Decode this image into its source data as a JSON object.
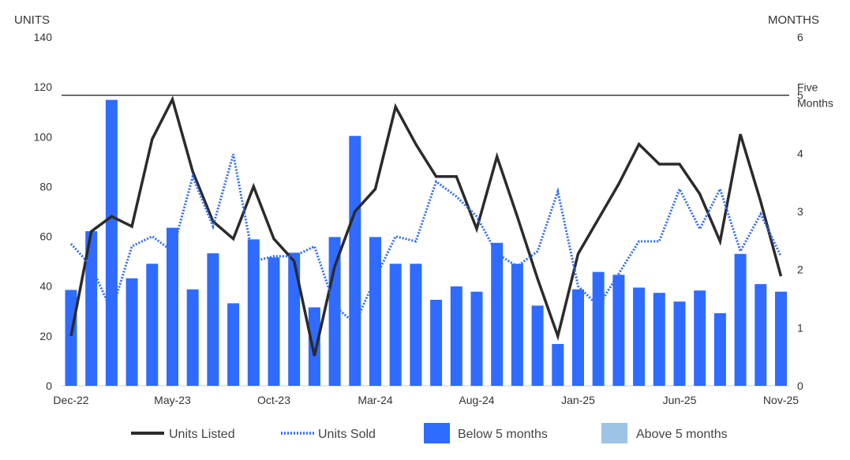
{
  "chart_data": {
    "type": "bar+line",
    "left_axis": {
      "title": "UNITS",
      "min": 0,
      "max": 140,
      "ticks": [
        "0",
        "20",
        "40",
        "60",
        "80",
        "100",
        "120",
        "140"
      ]
    },
    "right_axis": {
      "title": "MONTHS",
      "min": 0,
      "max": 6,
      "ticks": [
        "0",
        "1",
        "2",
        "3",
        "4",
        "5",
        "6"
      ]
    },
    "reference_line": {
      "value_months": 5,
      "label_line1": "Five",
      "label_line2": "Months"
    },
    "x_tick_labels": [
      {
        "index": 0,
        "label": "Dec-22"
      },
      {
        "index": 5,
        "label": "May-23"
      },
      {
        "index": 10,
        "label": "Oct-23"
      },
      {
        "index": 15,
        "label": "Mar-24"
      },
      {
        "index": 20,
        "label": "Aug-24"
      },
      {
        "index": 25,
        "label": "Jan-25"
      },
      {
        "index": 30,
        "label": "Jun-25"
      },
      {
        "index": 35,
        "label": "Nov-25"
      }
    ],
    "bars": {
      "name": "Below 5 months",
      "color": "#2f6bff",
      "axis": "right",
      "values": [
        1.65,
        2.66,
        4.92,
        1.85,
        2.1,
        2.72,
        1.66,
        2.28,
        1.42,
        2.52,
        2.21,
        2.29,
        1.35,
        2.56,
        4.3,
        2.56,
        2.1,
        2.1,
        1.48,
        1.71,
        1.62,
        2.46,
        2.1,
        1.38,
        0.72,
        1.66,
        1.96,
        1.91,
        1.69,
        1.6,
        1.45,
        1.64,
        1.25,
        2.27,
        1.75,
        1.62
      ]
    },
    "series": [
      {
        "name": "Units Listed",
        "style": "solid",
        "color": "#2b2b2b",
        "axis": "left",
        "values": [
          20,
          62,
          68,
          64,
          99,
          115,
          86,
          66,
          59,
          80,
          59,
          50,
          12,
          48,
          70,
          79,
          112,
          97,
          84,
          84,
          63,
          92,
          68,
          43,
          20,
          53,
          67,
          81,
          97,
          89,
          89,
          77,
          58,
          101,
          74,
          44
        ]
      },
      {
        "name": "Units Sold",
        "style": "dotted",
        "color": "#2f6bff",
        "axis": "left",
        "values": [
          57,
          48,
          30,
          56,
          60,
          54,
          84,
          64,
          93,
          50,
          52,
          52,
          56,
          32,
          25,
          43,
          60,
          58,
          82,
          76,
          68,
          53,
          48,
          54,
          78,
          40,
          32,
          45,
          58,
          58,
          79,
          63,
          79,
          54,
          69,
          52
        ]
      }
    ],
    "legend": [
      {
        "label": "Units Listed",
        "kind": "solid-line",
        "color": "#2b2b2b"
      },
      {
        "label": "Units Sold",
        "kind": "dotted-line",
        "color": "#2f6bff"
      },
      {
        "label": "Below 5 months",
        "kind": "box",
        "color": "#2f6bff"
      },
      {
        "label": "Above 5 months",
        "kind": "box",
        "color": "#9dc3e6"
      }
    ],
    "legend_position": "bottom",
    "grid": false
  }
}
